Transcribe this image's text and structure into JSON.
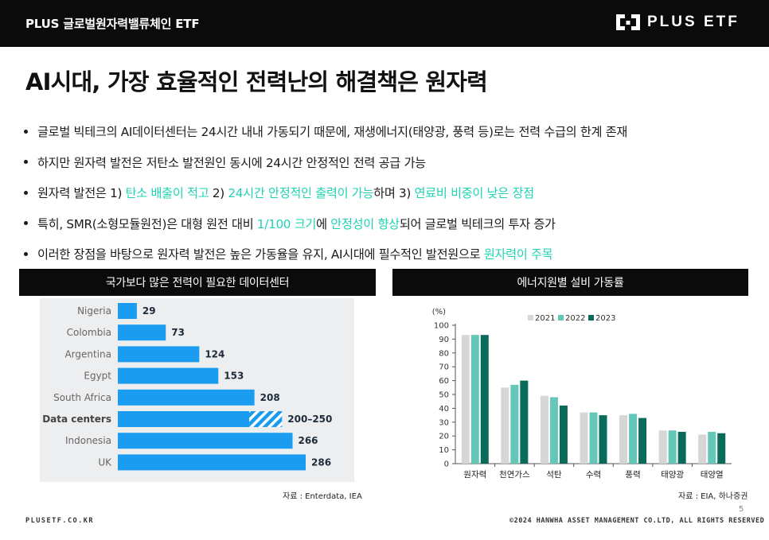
{
  "header": {
    "product_name": "PLUS 글로벌원자력밸류체인 ETF",
    "brand": "PLUS ETF"
  },
  "title": "AI시대, 가장 효율적인 전력난의 해결책은 원자력",
  "bullets": [
    [
      {
        "t": "글로벌 빅테크의 AI데이터센터는 24시간 내내 가동되기 때문에, 재생에너지(태양광, 풍력 등)로는 전력 수급의 한계 존재",
        "h": false
      }
    ],
    [
      {
        "t": "하지만 원자력 발전은 저탄소 발전원인 동시에 24시간 안정적인 전력 공급 가능",
        "h": false
      }
    ],
    [
      {
        "t": "원자력 발전은 1) ",
        "h": false
      },
      {
        "t": "탄소 배출이 적고",
        "h": true
      },
      {
        "t": " 2) ",
        "h": false
      },
      {
        "t": "24시간 안정적인 출력이 가능",
        "h": true
      },
      {
        "t": "하며 3) ",
        "h": false
      },
      {
        "t": "연료비 비중이 낮은 장점",
        "h": true
      }
    ],
    [
      {
        "t": "특히, SMR(소형모듈원전)은 대형 원전 대비 ",
        "h": false
      },
      {
        "t": "1/100 크기",
        "h": true
      },
      {
        "t": "에 ",
        "h": false
      },
      {
        "t": "안정성이 향상",
        "h": true
      },
      {
        "t": "되어 글로벌 빅테크의 투자 증가",
        "h": false
      }
    ],
    [
      {
        "t": "이러한 장점을 바탕으로 원자력 발전은 높은 가동율을 유지, AI시대에 필수적인 발전원으로 ",
        "h": false
      },
      {
        "t": "원자력이 주목",
        "h": true
      }
    ]
  ],
  "left_panel": {
    "title": "국가보다 많은 전력이 필요한 데이터센터",
    "source": "자료 : Enterdata, IEA"
  },
  "right_panel": {
    "title": "에너지원별 설비 가동률",
    "source": "자료 : EIA, 하나증권"
  },
  "chart_data": [
    {
      "type": "bar",
      "orientation": "horizontal",
      "title": "국가보다 많은 전력이 필요한 데이터센터",
      "categories": [
        "Nigeria",
        "Colombia",
        "Argentina",
        "Egypt",
        "South Africa",
        "Data centers",
        "Indonesia",
        "UK"
      ],
      "values": [
        29,
        73,
        124,
        153,
        208,
        200,
        266,
        286
      ],
      "range_max": [
        null,
        null,
        null,
        null,
        null,
        250,
        null,
        null
      ],
      "value_labels": [
        "29",
        "73",
        "124",
        "153",
        "208",
        "200–250",
        "266",
        "286"
      ],
      "highlight_category": "Data centers",
      "bar_color": "#1a9cf0",
      "xlim": [
        0,
        300
      ]
    },
    {
      "type": "bar",
      "title": "에너지원별 설비 가동률",
      "ylabel": "(%)",
      "categories": [
        "원자력",
        "천연가스",
        "석탄",
        "수력",
        "풍력",
        "태양광",
        "태양열"
      ],
      "series": [
        {
          "name": "2021",
          "color": "#d6d6d6",
          "values": [
            93,
            55,
            49,
            37,
            35,
            24,
            21
          ]
        },
        {
          "name": "2022",
          "color": "#64c7b8",
          "values": [
            93,
            57,
            48,
            37,
            36,
            24,
            23
          ]
        },
        {
          "name": "2023",
          "color": "#0a6b5a",
          "values": [
            93,
            60,
            42,
            35,
            33,
            23,
            22
          ]
        }
      ],
      "ylim": [
        0,
        100
      ],
      "yticks": [
        0,
        10,
        20,
        30,
        40,
        50,
        60,
        70,
        80,
        90,
        100
      ]
    }
  ],
  "footer": {
    "website": "PLUSETF.CO.KR",
    "copyright": "©2024 HANWHA ASSET MANAGEMENT CO.LTD, ALL RIGHTS RESERVED",
    "page": "5"
  }
}
